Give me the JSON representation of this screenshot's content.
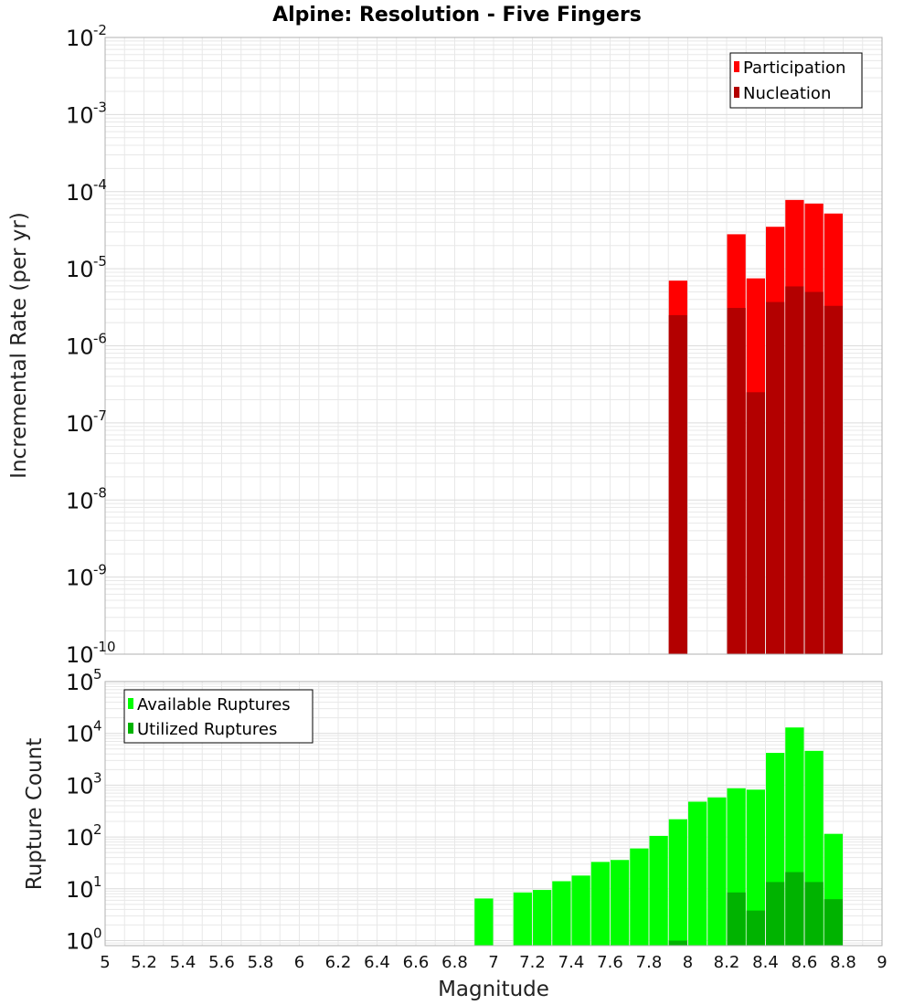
{
  "chart_data": [
    {
      "type": "bar",
      "title": "Alpine: Resolution - Five Fingers",
      "xlabel": "Magnitude",
      "ylabel": "Incremental Rate (per yr)",
      "yscale": "log",
      "xlim": [
        5,
        9
      ],
      "ylim": [
        1e-10,
        0.01
      ],
      "ytick_exponents": [
        "-10",
        "-9",
        "-8",
        "-7",
        "-6",
        "-5",
        "-4",
        "-3",
        "-2"
      ],
      "grid": true,
      "legend_position": "top-right",
      "x": [
        7.95,
        8.25,
        8.35,
        8.45,
        8.55,
        8.65,
        8.75
      ],
      "series": [
        {
          "name": "Participation",
          "color": "#ff0000",
          "values": [
            7e-06,
            2.8e-05,
            7.5e-06,
            3.5e-05,
            7.8e-05,
            7e-05,
            5.2e-05
          ]
        },
        {
          "name": "Nucleation",
          "color": "#b30000",
          "values": [
            2.5e-06,
            3.1e-06,
            2.5e-07,
            3.7e-06,
            5.9e-06,
            5e-06,
            3.3e-06
          ]
        }
      ]
    },
    {
      "type": "bar",
      "xlabel": "Magnitude",
      "ylabel": "Rupture Count",
      "yscale": "log",
      "xlim": [
        5,
        9
      ],
      "ylim": [
        0.8,
        100000
      ],
      "ytick_exponents": [
        "0",
        "1",
        "2",
        "3",
        "4",
        "5"
      ],
      "grid": true,
      "legend_position": "top-left",
      "x": [
        6.95,
        7.15,
        7.25,
        7.35,
        7.45,
        7.55,
        7.65,
        7.75,
        7.85,
        7.95,
        8.05,
        8.15,
        8.25,
        8.35,
        8.45,
        8.55,
        8.65,
        8.75
      ],
      "series": [
        {
          "name": "Available Ruptures",
          "color": "#00ff00",
          "values": [
            6.5,
            8.5,
            9.5,
            14,
            18,
            33,
            36,
            60,
            105,
            220,
            480,
            580,
            870,
            820,
            4200,
            13000,
            4600,
            115
          ]
        },
        {
          "name": "Utilized Ruptures",
          "color": "#00b300",
          "values": [
            null,
            null,
            null,
            null,
            null,
            null,
            null,
            null,
            null,
            1,
            null,
            null,
            8.5,
            3.8,
            13.5,
            21,
            13.5,
            6.3
          ]
        }
      ]
    }
  ],
  "xticks": [
    "5",
    "5.2",
    "5.4",
    "5.6",
    "5.8",
    "6",
    "6.2",
    "6.4",
    "6.6",
    "6.8",
    "7",
    "7.2",
    "7.4",
    "7.6",
    "7.8",
    "8",
    "8.2",
    "8.4",
    "8.6",
    "8.8",
    "9"
  ],
  "ytick_base": "10",
  "colors": {
    "plot_border": "#b0b0b0",
    "grid": "#e8e8e8"
  }
}
